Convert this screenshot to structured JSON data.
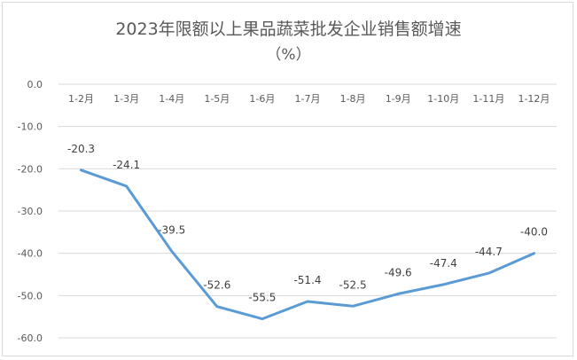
{
  "chart_data": {
    "type": "line",
    "title": "2023年限额以上果品蔬菜批发企业销售额增速",
    "subtitle": "（%）",
    "categories": [
      "1-2月",
      "1-3月",
      "1-4月",
      "1-5月",
      "1-6月",
      "1-7月",
      "1-8月",
      "1-9月",
      "1-10月",
      "1-11月",
      "1-12月"
    ],
    "values": [
      -20.3,
      -24.1,
      -39.5,
      -52.6,
      -55.5,
      -51.4,
      -52.5,
      -49.6,
      -47.4,
      -44.7,
      -40.0
    ],
    "value_labels": [
      "-20.3",
      "-24.1",
      "-39.5",
      "-52.6",
      "-55.5",
      "-51.4",
      "-52.5",
      "-49.6",
      "-47.4",
      "-44.7",
      "-40.0"
    ],
    "y_ticks": [
      "0.0",
      "-10.0",
      "-20.0",
      "-30.0",
      "-40.0",
      "-50.0",
      "-60.0"
    ],
    "ylim": [
      -60,
      0
    ],
    "grid": true,
    "x_axis_position": "top",
    "line_color": "#5b9bd5",
    "grid_color": "#d9d9d9",
    "text_color": "#595959"
  }
}
